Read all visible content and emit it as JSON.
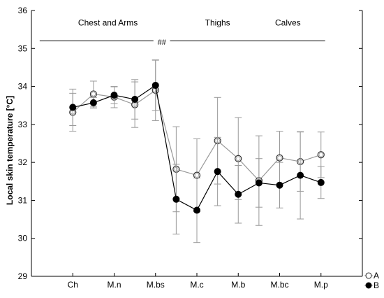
{
  "chart_data": {
    "type": "line",
    "ylabel": "Local skin temperature [°C]",
    "xlabel": "",
    "categories": [
      "Ch",
      "M.n",
      "M.bs",
      "M.c",
      "M.b",
      "M.bc",
      "M.p"
    ],
    "category_positions": [
      1,
      2,
      3,
      4,
      5,
      6,
      7
    ],
    "x_range": [
      0,
      8
    ],
    "ylim": [
      29,
      36
    ],
    "yticks": [
      29,
      30,
      31,
      32,
      33,
      34,
      35,
      36
    ],
    "grid": false,
    "legend_position": "bottom-right",
    "series": [
      {
        "name": "A",
        "color": "#999999",
        "marker": "open-circle",
        "x": [
          1,
          1.5,
          2,
          2.5,
          3,
          3.5,
          4,
          4.5,
          5,
          5.5,
          6,
          6.5,
          7
        ],
        "values": [
          33.32,
          33.8,
          33.72,
          33.52,
          33.9,
          31.82,
          31.66,
          32.57,
          32.1,
          31.52,
          32.12,
          32.02,
          32.2
        ],
        "errors": [
          0.5,
          0.34,
          0.28,
          0.6,
          0.8,
          1.12,
          0.96,
          1.14,
          1.08,
          1.18,
          0.7,
          0.78,
          0.6
        ]
      },
      {
        "name": "B",
        "color": "#000000",
        "marker": "filled-circle",
        "x": [
          1,
          1.5,
          2,
          2.5,
          3,
          3.5,
          4,
          4.5,
          5,
          5.5,
          6,
          6.5,
          7
        ],
        "values": [
          33.45,
          33.57,
          33.77,
          33.66,
          34.03,
          31.03,
          30.74,
          31.76,
          31.16,
          31.46,
          31.4,
          31.66,
          31.47
        ],
        "errors": [
          0.48,
          0.14,
          0.22,
          0.52,
          0.66,
          0.92,
          0.85,
          0.9,
          0.76,
          0.64,
          0.6,
          1.15,
          0.42
        ]
      }
    ],
    "group_labels": [
      {
        "text": "Chest and Arms",
        "center": 1.85
      },
      {
        "text": "Thighs",
        "center": 4.5
      },
      {
        "text": "Calves",
        "center": 6.2
      }
    ],
    "group_bars": [
      {
        "from": 0.2,
        "to": 2.95,
        "y": 35.2
      },
      {
        "from": 3.35,
        "to": 7.1,
        "y": 35.2
      }
    ],
    "significance": {
      "text": "##",
      "x": 3.15,
      "y": 35.17
    }
  }
}
